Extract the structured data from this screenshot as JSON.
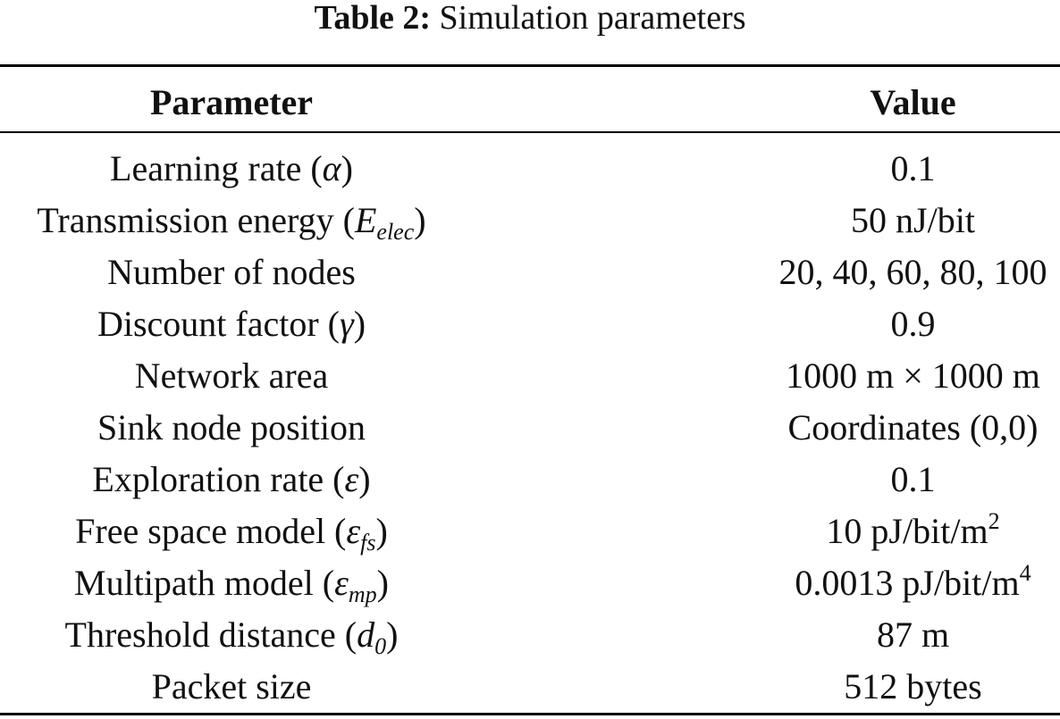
{
  "caption": {
    "label": "Table 2:",
    "title": "Simulation parameters"
  },
  "table": {
    "headers": {
      "parameter": "Parameter",
      "value": "Value"
    },
    "rows": [
      {
        "name": "Learning rate (",
        "symbol": "α",
        "sub": "",
        "close": ")",
        "value": "0.1",
        "value_sup": ""
      },
      {
        "name": "Transmission energy (",
        "symbol": "E",
        "sub": "elec",
        "close": ")",
        "value": "50 nJ/bit",
        "value_sup": ""
      },
      {
        "name": "Number of nodes",
        "symbol": "",
        "sub": "",
        "close": "",
        "value": "20, 40, 60, 80, 100",
        "value_sup": ""
      },
      {
        "name": "Discount factor (",
        "symbol": "γ",
        "sub": "",
        "close": ")",
        "value": "0.9",
        "value_sup": ""
      },
      {
        "name": "Network area",
        "symbol": "",
        "sub": "",
        "close": "",
        "value": "1000 m × 1000 m",
        "value_sup": ""
      },
      {
        "name": "Sink node position",
        "symbol": "",
        "sub": "",
        "close": "",
        "value": "Coordinates (0,0)",
        "value_sup": ""
      },
      {
        "name": "Exploration rate (",
        "symbol": "ε",
        "sub": "",
        "close": ")",
        "value": "0.1",
        "value_sup": ""
      },
      {
        "name": "Free space model (",
        "symbol": "ε",
        "sub": "fs",
        "close": ")",
        "value": "10 pJ/bit/m",
        "value_sup": "2"
      },
      {
        "name": "Multipath model (",
        "symbol": "ε",
        "sub": "mp",
        "close": ")",
        "value": "0.0013 pJ/bit/m",
        "value_sup": "4"
      },
      {
        "name": "Threshold distance (",
        "symbol": "d",
        "sub": "0",
        "close": ")",
        "value": "87 m",
        "value_sup": ""
      },
      {
        "name": "Packet size",
        "symbol": "",
        "sub": "",
        "close": "",
        "value": "512 bytes",
        "value_sup": ""
      }
    ]
  }
}
